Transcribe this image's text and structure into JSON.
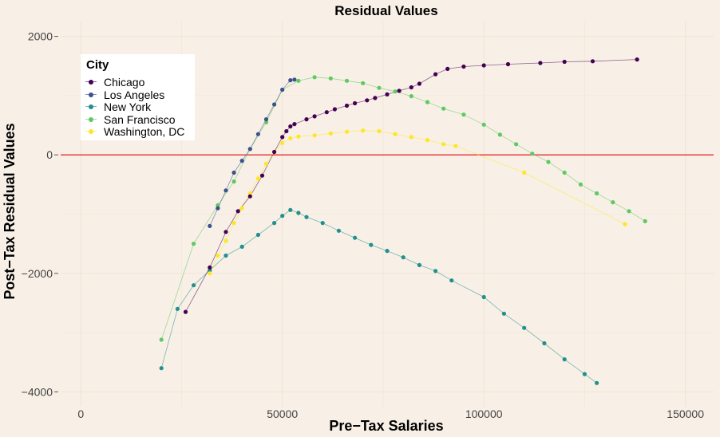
{
  "chart_data": {
    "type": "line",
    "title": "Residual Values",
    "xlabel": "Pre−Tax Salaries",
    "ylabel": "Post−Tax Residual Values",
    "xlim": [
      -5000,
      157000
    ],
    "ylim": [
      -4250,
      2250
    ],
    "x_ticks": [
      0,
      50000,
      100000,
      150000
    ],
    "x_tick_labels": [
      "0",
      "50000",
      "100000",
      "150000"
    ],
    "y_ticks": [
      -4000,
      -2000,
      0,
      2000
    ],
    "y_tick_labels": [
      "−4000",
      "−2000",
      "0",
      "2000"
    ],
    "reference_line": {
      "y": 0,
      "color": "#e8000b"
    },
    "grid": true,
    "legend": {
      "title": "City",
      "position": "top-left"
    },
    "series": [
      {
        "name": "Chicago",
        "color": "#440154",
        "points": [
          [
            26000,
            -2650
          ],
          [
            32000,
            -1900
          ],
          [
            36000,
            -1300
          ],
          [
            39000,
            -950
          ],
          [
            42000,
            -700
          ],
          [
            45000,
            -350
          ],
          [
            48000,
            50
          ],
          [
            50000,
            300
          ],
          [
            51000,
            400
          ],
          [
            52000,
            480
          ],
          [
            53000,
            520
          ],
          [
            56000,
            600
          ],
          [
            58000,
            650
          ],
          [
            61000,
            720
          ],
          [
            63000,
            770
          ],
          [
            66000,
            830
          ],
          [
            68000,
            870
          ],
          [
            71000,
            920
          ],
          [
            73000,
            960
          ],
          [
            76000,
            1020
          ],
          [
            79000,
            1080
          ],
          [
            82000,
            1140
          ],
          [
            84000,
            1200
          ],
          [
            88000,
            1360
          ],
          [
            91000,
            1450
          ],
          [
            95000,
            1490
          ],
          [
            100000,
            1510
          ],
          [
            106000,
            1530
          ],
          [
            114000,
            1550
          ],
          [
            120000,
            1570
          ],
          [
            127000,
            1580
          ],
          [
            138000,
            1610
          ]
        ]
      },
      {
        "name": "Los Angeles",
        "color": "#3b528b",
        "points": [
          [
            32000,
            -1200
          ],
          [
            34000,
            -900
          ],
          [
            36000,
            -600
          ],
          [
            38000,
            -300
          ],
          [
            40000,
            -100
          ],
          [
            42000,
            100
          ],
          [
            44000,
            350
          ],
          [
            46000,
            600
          ],
          [
            48000,
            850
          ],
          [
            50000,
            1100
          ],
          [
            52000,
            1260
          ],
          [
            53000,
            1270
          ]
        ]
      },
      {
        "name": "New York",
        "color": "#21908d",
        "points": [
          [
            20000,
            -3600
          ],
          [
            24000,
            -2600
          ],
          [
            28000,
            -2200
          ],
          [
            32000,
            -1950
          ],
          [
            36000,
            -1700
          ],
          [
            40000,
            -1550
          ],
          [
            44000,
            -1350
          ],
          [
            48000,
            -1150
          ],
          [
            50000,
            -1030
          ],
          [
            52000,
            -930
          ],
          [
            54000,
            -980
          ],
          [
            56000,
            -1050
          ],
          [
            60000,
            -1150
          ],
          [
            64000,
            -1280
          ],
          [
            68000,
            -1400
          ],
          [
            72000,
            -1520
          ],
          [
            76000,
            -1620
          ],
          [
            80000,
            -1730
          ],
          [
            84000,
            -1860
          ],
          [
            88000,
            -1960
          ],
          [
            92000,
            -2120
          ],
          [
            100000,
            -2400
          ],
          [
            105000,
            -2680
          ],
          [
            110000,
            -2920
          ],
          [
            115000,
            -3180
          ],
          [
            120000,
            -3450
          ],
          [
            125000,
            -3700
          ],
          [
            128000,
            -3850
          ]
        ]
      },
      {
        "name": "San Francisco",
        "color": "#5ec962",
        "points": [
          [
            20000,
            -3120
          ],
          [
            28000,
            -1500
          ],
          [
            34000,
            -850
          ],
          [
            38000,
            -450
          ],
          [
            42000,
            100
          ],
          [
            46000,
            550
          ],
          [
            50000,
            1100
          ],
          [
            54000,
            1250
          ],
          [
            58000,
            1310
          ],
          [
            62000,
            1290
          ],
          [
            66000,
            1250
          ],
          [
            70000,
            1210
          ],
          [
            74000,
            1130
          ],
          [
            78000,
            1070
          ],
          [
            82000,
            990
          ],
          [
            86000,
            890
          ],
          [
            90000,
            780
          ],
          [
            95000,
            680
          ],
          [
            100000,
            510
          ],
          [
            104000,
            340
          ],
          [
            108000,
            180
          ],
          [
            112000,
            20
          ],
          [
            116000,
            -120
          ],
          [
            120000,
            -300
          ],
          [
            124000,
            -500
          ],
          [
            128000,
            -650
          ],
          [
            132000,
            -800
          ],
          [
            136000,
            -950
          ],
          [
            140000,
            -1120
          ]
        ]
      },
      {
        "name": "Washington, DC",
        "color": "#fde725",
        "points": [
          [
            32000,
            -2000
          ],
          [
            34000,
            -1700
          ],
          [
            36000,
            -1450
          ],
          [
            38000,
            -1150
          ],
          [
            40000,
            -900
          ],
          [
            42000,
            -650
          ],
          [
            44000,
            -400
          ],
          [
            46000,
            -150
          ],
          [
            48000,
            50
          ],
          [
            50000,
            200
          ],
          [
            52000,
            280
          ],
          [
            54000,
            310
          ],
          [
            58000,
            330
          ],
          [
            62000,
            360
          ],
          [
            66000,
            390
          ],
          [
            70000,
            410
          ],
          [
            74000,
            400
          ],
          [
            78000,
            350
          ],
          [
            82000,
            300
          ],
          [
            86000,
            250
          ],
          [
            90000,
            180
          ],
          [
            93000,
            150
          ],
          [
            110000,
            -300
          ],
          [
            135000,
            -1170
          ]
        ]
      }
    ]
  }
}
